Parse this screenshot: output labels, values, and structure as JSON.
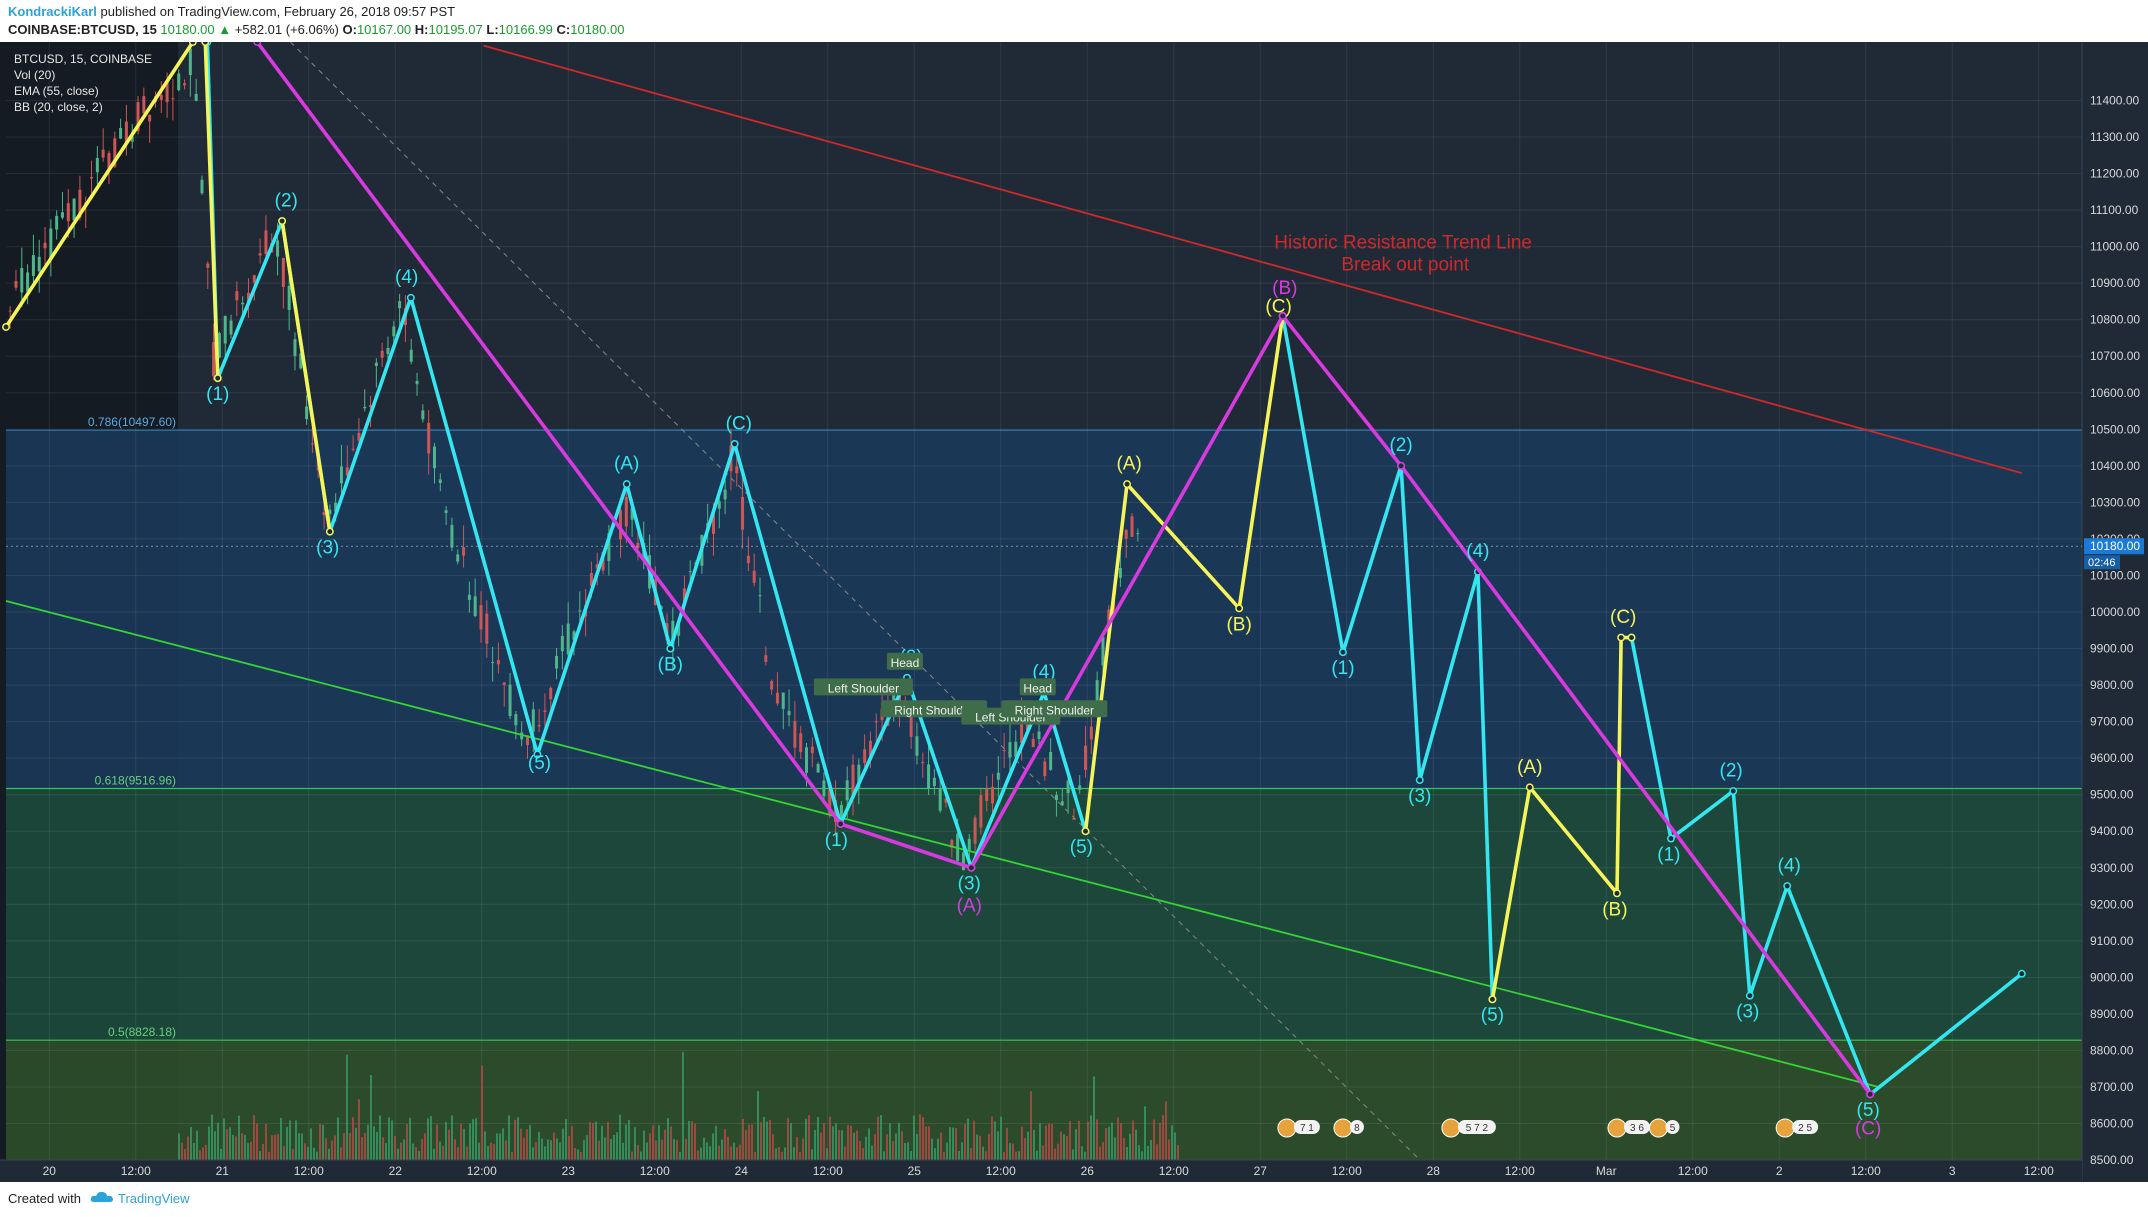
{
  "header": {
    "author": "KondrackiKarl",
    "published": "published on TradingView.com, February 26, 2018 09:57 PST",
    "symbol": "COINBASE:BTCUSD, 15",
    "last": "10180.00",
    "change": "+582.01 (+6.06%)",
    "o_label": "O:",
    "o_val": "10167.00",
    "h_label": "H:",
    "h_val": "10195.07",
    "l_label": "L:",
    "l_val": "10166.99",
    "c_label": "C:",
    "c_val": "10180.00"
  },
  "legend": {
    "line1": "BTCUSD, 15, COINBASE",
    "line2": "Vol (20)",
    "line3": "EMA (55, close)",
    "line4": "BB (20, close, 2)"
  },
  "footer": {
    "created": "Created with",
    "brand": "TradingView"
  },
  "colors": {
    "background": "#1f2a36",
    "cyan": "#33e6f0",
    "yellow": "#f5f55a",
    "magenta": "#d93ae0",
    "red_trend": "#d0282b",
    "green_trend": "#33d433",
    "fib_blue": "#1b3a5c",
    "fib_green_dark": "#1d4a3c",
    "fib_green_light": "#2c4f2a",
    "price_tag": "#1b7ad6"
  },
  "chart_data": {
    "type": "line",
    "title": "",
    "ylim": [
      8440,
      11560
    ],
    "y_ticks": [
      "11400.00",
      "11300.00",
      "11200.00",
      "11100.00",
      "11000.00",
      "10900.00",
      "10800.00",
      "10700.00",
      "10600.00",
      "10500.00",
      "10400.00",
      "10300.00",
      "10200.00",
      "10100.00",
      "10000.00",
      "9900.00",
      "9800.00",
      "9700.00",
      "9600.00",
      "9500.00",
      "9400.00",
      "9300.00",
      "9200.00",
      "9100.00",
      "9000.00",
      "8900.00",
      "8800.00",
      "8700.00",
      "8600.00",
      "8500.00"
    ],
    "x_ticks": [
      "20",
      "12:00",
      "21",
      "12:00",
      "22",
      "12:00",
      "23",
      "12:00",
      "24",
      "12:00",
      "25",
      "12:00",
      "26",
      "12:00",
      "27",
      "12:00",
      "28",
      "12:00",
      "Mar",
      "12:00",
      "2",
      "12:00",
      "3",
      "12:00"
    ],
    "current_price": {
      "value": 10180,
      "label": "10180.00",
      "countdown": "02:46"
    },
    "fib_levels": [
      {
        "ratio": 0.786,
        "value": 10497.6,
        "label": "0.786(10497.60)"
      },
      {
        "ratio": 0.618,
        "value": 9516.96,
        "label": "0.618(9516.96)"
      },
      {
        "ratio": 0.5,
        "value": 8828.18,
        "label": "0.5(8828.18)"
      }
    ],
    "annotations": [
      {
        "text": "Historic Resistance Trend Line",
        "color": "#d0282b"
      },
      {
        "text": "Break out point",
        "color": "#d0282b"
      }
    ],
    "trend_lines": [
      {
        "name": "resistance",
        "color": "#d0282b",
        "x": [
          0.23,
          0.971
        ],
        "y": [
          11550,
          10380
        ]
      },
      {
        "name": "support",
        "color": "#33d433",
        "x": [
          0.0,
          0.902
        ],
        "y": [
          10030,
          8700
        ]
      },
      {
        "name": "dashed",
        "color": "#888888",
        "x": [
          0.137,
          0.69
        ],
        "y": [
          11560,
          8450
        ]
      }
    ],
    "series": [
      {
        "color": "#33e6f0",
        "points": [
          [
            0.097,
            11560
          ],
          [
            0.102,
            10640
          ],
          [
            0.133,
            11070
          ],
          [
            0.156,
            10220
          ],
          [
            0.195,
            10860
          ],
          [
            0.256,
            9610
          ],
          [
            0.299,
            10350
          ],
          [
            0.32,
            9900
          ],
          [
            0.351,
            10460
          ],
          [
            0.402,
            9420
          ],
          [
            0.434,
            9820
          ],
          [
            0.465,
            9300
          ],
          [
            0.5,
            9780
          ],
          [
            0.52,
            9400
          ]
        ]
      },
      {
        "color": "#33e6f0",
        "points": [
          [
            0.615,
            10810
          ],
          [
            0.644,
            9890
          ],
          [
            0.672,
            10400
          ],
          [
            0.681,
            9540
          ],
          [
            0.709,
            10110
          ],
          [
            0.716,
            8940
          ]
        ]
      },
      {
        "color": "#33e6f0",
        "points": [
          [
            0.783,
            9930
          ],
          [
            0.802,
            9380
          ],
          [
            0.832,
            9510
          ],
          [
            0.84,
            8950
          ],
          [
            0.858,
            9250
          ],
          [
            0.898,
            8680
          ],
          [
            0.971,
            9010
          ]
        ]
      },
      {
        "color": "#f5f55a",
        "points": [
          [
            0.0,
            10780
          ],
          [
            0.09,
            11560
          ]
        ]
      },
      {
        "color": "#f5f55a",
        "points": [
          [
            0.096,
            11560
          ],
          [
            0.102,
            10640
          ]
        ]
      },
      {
        "color": "#f5f55a",
        "points": [
          [
            0.133,
            11070
          ],
          [
            0.156,
            10220
          ]
        ]
      },
      {
        "color": "#f5f55a",
        "points": [
          [
            0.52,
            9400
          ],
          [
            0.54,
            10350
          ],
          [
            0.594,
            10010
          ],
          [
            0.615,
            10810
          ]
        ]
      },
      {
        "color": "#f5f55a",
        "points": [
          [
            0.716,
            8940
          ],
          [
            0.734,
            9520
          ],
          [
            0.776,
            9230
          ],
          [
            0.778,
            9930
          ],
          [
            0.783,
            9930
          ]
        ]
      },
      {
        "color": "#d93ae0",
        "points": [
          [
            0.121,
            11560
          ],
          [
            0.402,
            9420
          ],
          [
            0.465,
            9300
          ],
          [
            0.615,
            10810
          ],
          [
            0.672,
            10400
          ],
          [
            0.898,
            8680
          ]
        ]
      }
    ],
    "wave_labels": [
      {
        "text": "(1)",
        "color": "#33e6f0",
        "x": 0.102,
        "y": 10580
      },
      {
        "text": "(2)",
        "color": "#33e6f0",
        "x": 0.135,
        "y": 11110
      },
      {
        "text": "(3)",
        "color": "#33e6f0",
        "x": 0.155,
        "y": 10160
      },
      {
        "text": "(4)",
        "color": "#33e6f0",
        "x": 0.193,
        "y": 10900
      },
      {
        "text": "(5)",
        "color": "#33e6f0",
        "x": 0.257,
        "y": 9570
      },
      {
        "text": "(A)",
        "color": "#33e6f0",
        "x": 0.299,
        "y": 10390
      },
      {
        "text": "(B)",
        "color": "#33e6f0",
        "x": 0.32,
        "y": 9840
      },
      {
        "text": "(C)",
        "color": "#33e6f0",
        "x": 0.353,
        "y": 10500
      },
      {
        "text": "(1)",
        "color": "#33e6f0",
        "x": 0.4,
        "y": 9360
      },
      {
        "text": "(2)",
        "color": "#33e6f0",
        "x": 0.436,
        "y": 9860
      },
      {
        "text": "(3)",
        "color": "#33e6f0",
        "x": 0.464,
        "y": 9240
      },
      {
        "text": "(A)",
        "color": "#d93ae0",
        "x": 0.464,
        "y": 9180
      },
      {
        "text": "(4)",
        "color": "#33e6f0",
        "x": 0.5,
        "y": 9820
      },
      {
        "text": "(5)",
        "color": "#33e6f0",
        "x": 0.518,
        "y": 9340
      },
      {
        "text": "(A)",
        "color": "#f5f55a",
        "x": 0.541,
        "y": 10390
      },
      {
        "text": "(B)",
        "color": "#f5f55a",
        "x": 0.594,
        "y": 9950
      },
      {
        "text": "(B)",
        "color": "#d93ae0",
        "x": 0.616,
        "y": 10870
      },
      {
        "text": "(C)",
        "color": "#f5f55a",
        "x": 0.613,
        "y": 10820
      },
      {
        "text": "(1)",
        "color": "#33e6f0",
        "x": 0.644,
        "y": 9830
      },
      {
        "text": "(2)",
        "color": "#33e6f0",
        "x": 0.672,
        "y": 10440
      },
      {
        "text": "(3)",
        "color": "#33e6f0",
        "x": 0.681,
        "y": 9480
      },
      {
        "text": "(4)",
        "color": "#33e6f0",
        "x": 0.709,
        "y": 10150
      },
      {
        "text": "(5)",
        "color": "#33e6f0",
        "x": 0.716,
        "y": 8880
      },
      {
        "text": "(A)",
        "color": "#f5f55a",
        "x": 0.734,
        "y": 9560
      },
      {
        "text": "(B)",
        "color": "#f5f55a",
        "x": 0.775,
        "y": 9170
      },
      {
        "text": "(C)",
        "color": "#f5f55a",
        "x": 0.779,
        "y": 9970
      },
      {
        "text": "(1)",
        "color": "#33e6f0",
        "x": 0.801,
        "y": 9320
      },
      {
        "text": "(2)",
        "color": "#33e6f0",
        "x": 0.831,
        "y": 9550
      },
      {
        "text": "(3)",
        "color": "#33e6f0",
        "x": 0.839,
        "y": 8890
      },
      {
        "text": "(4)",
        "color": "#33e6f0",
        "x": 0.859,
        "y": 9290
      },
      {
        "text": "(5)",
        "color": "#33e6f0",
        "x": 0.897,
        "y": 8620
      },
      {
        "text": "(C)",
        "color": "#d93ae0",
        "x": 0.897,
        "y": 8570
      }
    ],
    "pattern_labels": [
      {
        "text": "Left Shoulder",
        "x": 0.413,
        "y": 9780
      },
      {
        "text": "Head",
        "x": 0.433,
        "y": 9850
      },
      {
        "text": "Right Shoulder",
        "x": 0.447,
        "y": 9720
      },
      {
        "text": "Head",
        "x": 0.497,
        "y": 9780
      },
      {
        "text": "Left Shoulder",
        "x": 0.484,
        "y": 9700
      },
      {
        "text": "Right Shoulder",
        "x": 0.505,
        "y": 9720
      }
    ],
    "event_badges": [
      {
        "text": "7 1",
        "x": 0.617
      },
      {
        "text": "8",
        "x": 0.644
      },
      {
        "text": "5 7 2",
        "x": 0.696
      },
      {
        "text": "3 6",
        "x": 0.776
      },
      {
        "text": "5",
        "x": 0.796
      },
      {
        "text": "2 5",
        "x": 0.857
      }
    ]
  }
}
